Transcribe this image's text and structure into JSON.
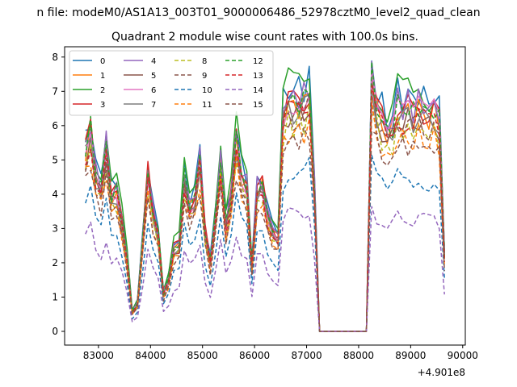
{
  "chart_data": {
    "type": "line",
    "suptitle": "n file: modeM0/AS1A13_003T01_9000006486_52978cztM0_level2_quad_clean",
    "title": "Quadrant 2 module wise count rates with 100.0s bins.",
    "xlabel": "",
    "ylabel": "",
    "x_offset_label": "+4.901e8",
    "xlim": [
      82350,
      90050
    ],
    "ylim": [
      -0.4,
      8.3
    ],
    "x_ticks": [
      83000,
      84000,
      85000,
      86000,
      87000,
      88000,
      89000,
      90000
    ],
    "x_tick_labels": [
      "83000",
      "84000",
      "85000",
      "86000",
      "87000",
      "88000",
      "89000",
      "90000"
    ],
    "y_ticks": [
      0,
      1,
      2,
      3,
      4,
      5,
      6,
      7,
      8
    ],
    "y_tick_labels": [
      "0",
      "1",
      "2",
      "3",
      "4",
      "5",
      "6",
      "7",
      "8"
    ],
    "grid": false,
    "legend_position": "top-left",
    "legend_columns": 4,
    "x": [
      82750,
      82850,
      82950,
      83050,
      83150,
      83250,
      83350,
      83450,
      83550,
      83650,
      83750,
      83850,
      83950,
      84050,
      84150,
      84250,
      84350,
      84450,
      84550,
      84650,
      84750,
      84850,
      84950,
      85050,
      85150,
      85250,
      85350,
      85450,
      85550,
      85650,
      85750,
      85850,
      85950,
      86050,
      86150,
      86250,
      86350,
      86450,
      86550,
      86650,
      86750,
      86850,
      86950,
      87050,
      87150,
      87250,
      87350,
      87450,
      87550,
      87650,
      87750,
      87850,
      87950,
      88050,
      88150,
      88250,
      88350,
      88450,
      88550,
      88650,
      88750,
      88850,
      88950,
      89050,
      89150,
      89250,
      89350,
      89450,
      89550,
      89650
    ],
    "base_profile": [
      5.2,
      5.8,
      4.5,
      4.2,
      5.3,
      3.9,
      4.0,
      3.2,
      2.1,
      0.55,
      0.85,
      2.6,
      4.6,
      3.4,
      2.8,
      1.1,
      1.5,
      2.4,
      2.5,
      4.4,
      3.6,
      3.9,
      4.9,
      2.9,
      2.0,
      3.4,
      4.9,
      3.1,
      3.9,
      5.5,
      4.5,
      4.2,
      1.9,
      4.1,
      4.2,
      3.3,
      3.0,
      2.7,
      6.2,
      6.6,
      6.5,
      6.6,
      6.6,
      6.9,
      4.2,
      0,
      0,
      0,
      0,
      0,
      0,
      0,
      0,
      0,
      0,
      7.3,
      6.4,
      6.1,
      5.6,
      5.9,
      6.5,
      6.3,
      6.4,
      6.2,
      6.5,
      6.3,
      6.2,
      6.4,
      6.0,
      2.2
    ],
    "series": [
      {
        "name": "0",
        "color": "#1f77b4",
        "dash": "solid",
        "scale": 1.08
      },
      {
        "name": "1",
        "color": "#ff7f0e",
        "dash": "solid",
        "scale": 1.0
      },
      {
        "name": "2",
        "color": "#2ca02c",
        "dash": "solid",
        "scale": 1.1
      },
      {
        "name": "3",
        "color": "#d62728",
        "dash": "solid",
        "scale": 1.02
      },
      {
        "name": "4",
        "color": "#9467bd",
        "dash": "solid",
        "scale": 1.04
      },
      {
        "name": "5",
        "color": "#8c564b",
        "dash": "solid",
        "scale": 0.96
      },
      {
        "name": "6",
        "color": "#e377c2",
        "dash": "solid",
        "scale": 1.0
      },
      {
        "name": "7",
        "color": "#7f7f7f",
        "dash": "solid",
        "scale": 0.98
      },
      {
        "name": "8",
        "color": "#bcbd22",
        "dash": "dashed",
        "scale": 0.92
      },
      {
        "name": "9",
        "color": "#8c564b",
        "dash": "dashed",
        "scale": 0.95
      },
      {
        "name": "10",
        "color": "#1f77b4",
        "dash": "dashed",
        "scale": 0.7
      },
      {
        "name": "11",
        "color": "#ff7f0e",
        "dash": "dashed",
        "scale": 0.88
      },
      {
        "name": "12",
        "color": "#2ca02c",
        "dash": "dashed",
        "scale": 1.02
      },
      {
        "name": "13",
        "color": "#d62728",
        "dash": "dashed",
        "scale": 0.97
      },
      {
        "name": "14",
        "color": "#9467bd",
        "dash": "dashed",
        "scale": 0.52
      },
      {
        "name": "15",
        "color": "#8c564b",
        "dash": "dashed",
        "scale": 0.85
      }
    ]
  }
}
